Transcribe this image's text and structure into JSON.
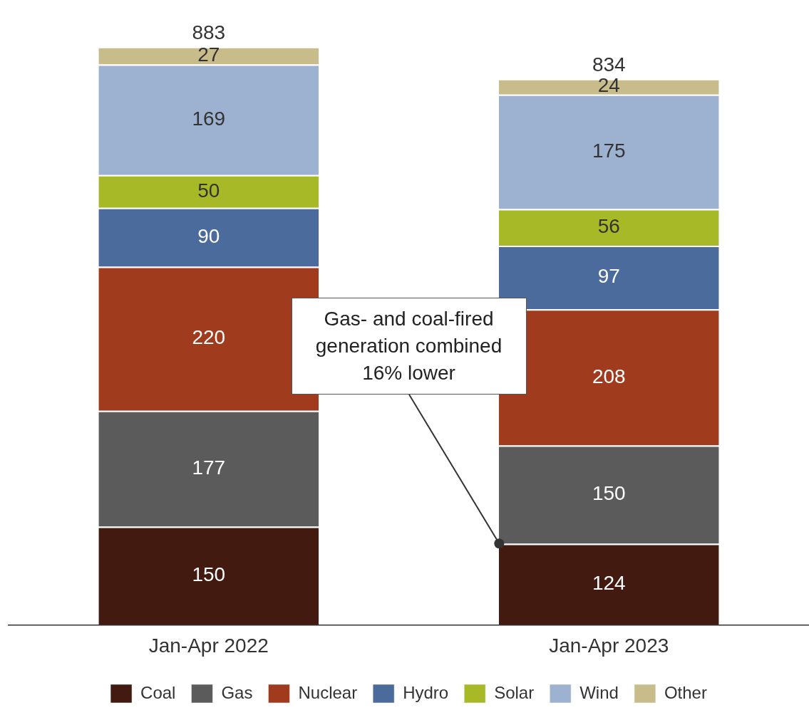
{
  "chart_data": {
    "type": "bar",
    "stacked": true,
    "data_labels": true,
    "legend": "bottom",
    "grid": false,
    "categories": [
      "Jan-Apr 2022",
      "Jan-Apr 2023"
    ],
    "series": [
      {
        "name": "Coal",
        "color": "#431a10",
        "values": [
          150,
          124
        ]
      },
      {
        "name": "Gas",
        "color": "#5b5b5b",
        "values": [
          177,
          150
        ]
      },
      {
        "name": "Nuclear",
        "color": "#a13b1e",
        "values": [
          220,
          208
        ]
      },
      {
        "name": "Hydro",
        "color": "#4a6b9b",
        "values": [
          90,
          97
        ]
      },
      {
        "name": "Solar",
        "color": "#a8b928",
        "values": [
          50,
          56
        ]
      },
      {
        "name": "Wind",
        "color": "#9db1d1",
        "values": [
          169,
          175
        ]
      },
      {
        "name": "Other",
        "color": "#c8bd8a",
        "values": [
          27,
          24
        ]
      }
    ],
    "totals": [
      "883",
      "834"
    ],
    "annotations": [
      "Gas- and coal-fired generation combined 16% lower"
    ]
  }
}
